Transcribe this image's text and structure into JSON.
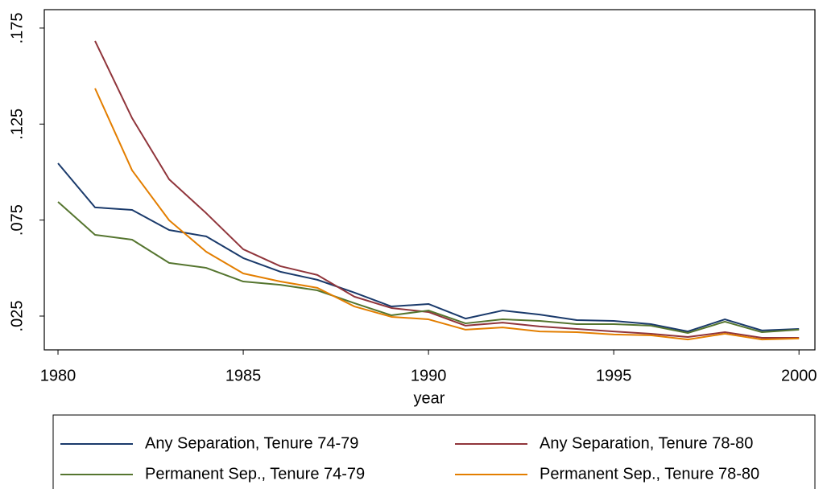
{
  "chart_data": {
    "type": "line",
    "x_label": "year",
    "x": [
      1980,
      1981,
      1982,
      1983,
      1984,
      1985,
      1986,
      1987,
      1988,
      1989,
      1990,
      1991,
      1992,
      1993,
      1994,
      1995,
      1996,
      1997,
      1998,
      1999,
      2000
    ],
    "xlim": [
      1979.63,
      2000.43
    ],
    "xticks": [
      1980,
      1985,
      1990,
      1995,
      2000
    ],
    "ylim": [
      0.0074,
      0.1846
    ],
    "yticks": [
      {
        "value": 0.025,
        "label": ".025"
      },
      {
        "value": 0.075,
        "label": ".075"
      },
      {
        "value": 0.125,
        "label": ".125"
      },
      {
        "value": 0.175,
        "label": ".175"
      }
    ],
    "series": [
      {
        "name": "Any Separation, Tenure 74-79",
        "color": "#1a3a6b",
        "values": [
          0.1046,
          0.0816,
          0.0803,
          0.0698,
          0.0665,
          0.0552,
          0.0481,
          0.0439,
          0.0372,
          0.03,
          0.0313,
          0.0237,
          0.0279,
          0.0258,
          0.0229,
          0.0225,
          0.0208,
          0.017,
          0.0233,
          0.0175,
          0.0183
        ]
      },
      {
        "name": "Any Separation, Tenure 78-80",
        "color": "#90353b",
        "values": [
          null,
          0.1683,
          0.1281,
          0.0962,
          0.0786,
          0.0598,
          0.051,
          0.0464,
          0.0351,
          0.0292,
          0.0271,
          0.02,
          0.0216,
          0.0196,
          0.0183,
          0.017,
          0.0158,
          0.0141,
          0.0166,
          0.0137,
          0.0137
        ]
      },
      {
        "name": "Permanent Sep., Tenure 74-79",
        "color": "#55752f",
        "values": [
          0.0845,
          0.0673,
          0.0648,
          0.0527,
          0.0501,
          0.043,
          0.0413,
          0.0384,
          0.0317,
          0.0254,
          0.0279,
          0.0212,
          0.0233,
          0.0225,
          0.0208,
          0.0208,
          0.02,
          0.0162,
          0.0221,
          0.0166,
          0.0179
        ]
      },
      {
        "name": "Permanent Sep., Tenure 78-80",
        "color": "#e37e00",
        "values": [
          null,
          0.1436,
          0.1009,
          0.0749,
          0.0585,
          0.0472,
          0.043,
          0.0397,
          0.03,
          0.0246,
          0.0233,
          0.0179,
          0.0191,
          0.017,
          0.0166,
          0.0154,
          0.015,
          0.0128,
          0.0158,
          0.0128,
          0.0133
        ]
      }
    ]
  }
}
